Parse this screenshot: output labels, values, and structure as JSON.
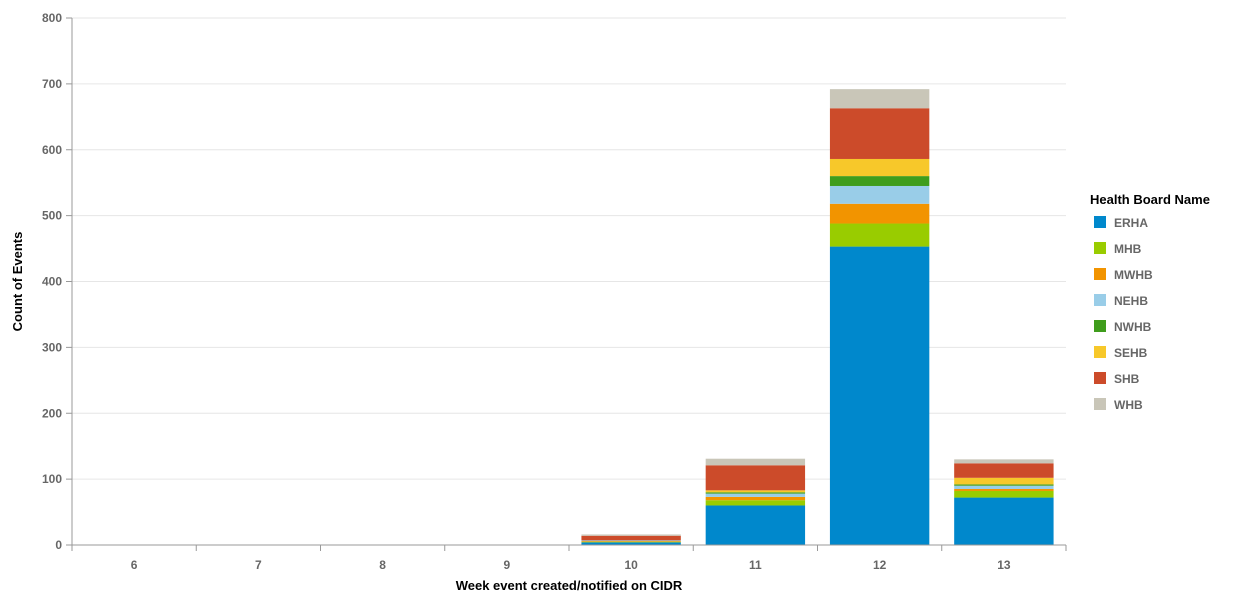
{
  "chart_data": {
    "type": "bar",
    "stacked": true,
    "title": "",
    "xlabel": "Week event created/notified on CIDR",
    "ylabel": "Count of Events",
    "categories": [
      "6",
      "7",
      "8",
      "9",
      "10",
      "11",
      "12",
      "13"
    ],
    "ylim": [
      0,
      800
    ],
    "yticks": [
      0,
      100,
      200,
      300,
      400,
      500,
      600,
      700,
      800
    ],
    "grid": true,
    "legend_title": "Health Board Name",
    "legend_position": "right",
    "series": [
      {
        "name": "ERHA",
        "color": "#0088cc",
        "values": [
          0,
          0,
          0,
          0,
          4,
          60,
          453,
          72
        ]
      },
      {
        "name": "MHB",
        "color": "#99cc00",
        "values": [
          0,
          0,
          0,
          0,
          1,
          8,
          35,
          10
        ]
      },
      {
        "name": "MWHB",
        "color": "#f29400",
        "values": [
          0,
          0,
          0,
          0,
          1,
          5,
          30,
          3
        ]
      },
      {
        "name": "NEHB",
        "color": "#99cde8",
        "values": [
          0,
          0,
          0,
          0,
          1,
          5,
          27,
          5
        ]
      },
      {
        "name": "NWHB",
        "color": "#3f9d1c",
        "values": [
          0,
          0,
          0,
          0,
          0,
          2,
          15,
          2
        ]
      },
      {
        "name": "SEHB",
        "color": "#f7c82a",
        "values": [
          0,
          0,
          0,
          0,
          0,
          3,
          26,
          10
        ]
      },
      {
        "name": "SHB",
        "color": "#cc4b2a",
        "values": [
          0,
          0,
          0,
          0,
          7,
          38,
          77,
          22
        ]
      },
      {
        "name": "WHB",
        "color": "#c9c6b8",
        "values": [
          0,
          0,
          0,
          0,
          2,
          10,
          29,
          6
        ]
      }
    ]
  }
}
